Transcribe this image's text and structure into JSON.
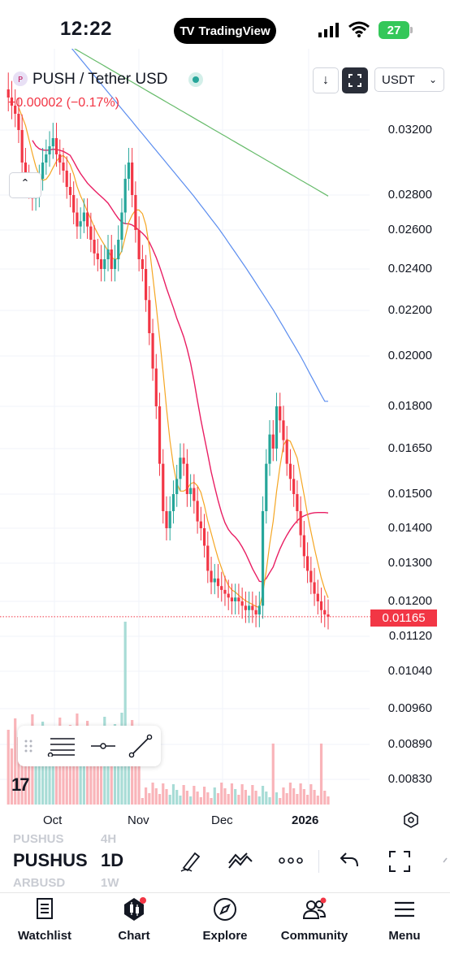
{
  "status": {
    "time": "12:22",
    "app_badge": "TradingView",
    "battery": "27"
  },
  "header": {
    "symbol_title": "PUSH / Tether USD",
    "change": "−0.00002 (−0.17%)",
    "currency": "USDT"
  },
  "chart_data": {
    "type": "candlestick",
    "title": "PUSH / Tether USD",
    "interval": "1D",
    "y_ticks": [
      "0.03200",
      "0.02800",
      "0.02600",
      "0.02400",
      "0.02200",
      "0.02000",
      "0.01800",
      "0.01650",
      "0.01500",
      "0.01400",
      "0.01300",
      "0.01200",
      "0.01120",
      "0.01040",
      "0.00960",
      "0.00890",
      "0.00830"
    ],
    "last_price": "0.01165",
    "x_ticks": [
      "Oct",
      "Nov",
      "Dec",
      "2026"
    ],
    "ma_colors": {
      "ma_fast": "#f5a623",
      "ma_mid": "#e91e63",
      "ma_slow": "#5b8def",
      "ma_long": "#66bb6a"
    },
    "candle_colors": {
      "up": "#26a69a",
      "down": "#f23645"
    }
  },
  "bottom": {
    "symbol": "PUSHUS",
    "interval": "1D",
    "ghost_symbols": [
      "PUSHUS",
      "ARBUSD"
    ],
    "ghost_intervals": [
      "4H",
      "1W"
    ]
  },
  "nav": [
    {
      "label": "Watchlist",
      "icon": "book-icon"
    },
    {
      "label": "Chart",
      "icon": "candles-icon"
    },
    {
      "label": "Explore",
      "icon": "compass-icon"
    },
    {
      "label": "Community",
      "icon": "people-icon"
    },
    {
      "label": "Menu",
      "icon": "hamburger-icon"
    }
  ]
}
